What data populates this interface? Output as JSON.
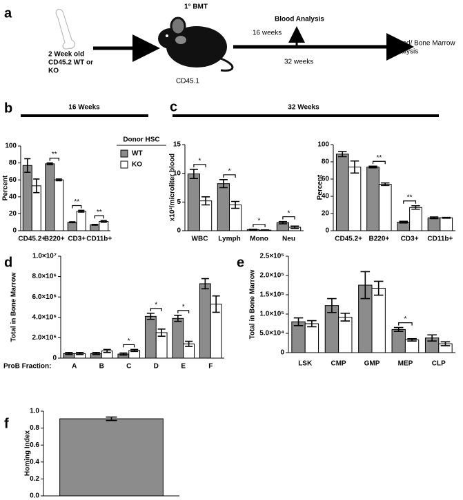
{
  "panel_labels": [
    "a",
    "b",
    "c",
    "d",
    "e",
    "f"
  ],
  "diagram": {
    "title": "1° BMT",
    "donor_lines": [
      "2 Week old",
      "CD45.2 WT or",
      "KO"
    ],
    "recipient": "CD45.1",
    "blood_analysis": "Blood Analysis",
    "time_1": "16 weeks",
    "time_2": "32 weeks",
    "endpoint_lines": [
      "Blood/ Bone Marrow",
      "Analysis"
    ]
  },
  "chart_data": [
    {
      "type": "bar",
      "title": "16 Weeks",
      "ylabel": "Percent",
      "categories": [
        "CD45.2+",
        "B220+",
        "CD3+",
        "CD11b+"
      ],
      "legend": true,
      "legend_title": "Donor HSC",
      "series": [
        {
          "name": "WT",
          "color": "#8c8c8c",
          "values": [
            77,
            79,
            10,
            7
          ],
          "errors": [
            8,
            1,
            0.5,
            0.5
          ]
        },
        {
          "name": "KO",
          "color": "#ffffff",
          "values": [
            53,
            60,
            23,
            11
          ],
          "errors": [
            8,
            1,
            1,
            1
          ]
        }
      ],
      "significance": [
        null,
        "**",
        "**",
        "**"
      ],
      "ylim": [
        0,
        100
      ],
      "yticks": [
        0,
        20,
        40,
        60,
        80,
        100
      ]
    },
    {
      "type": "bar",
      "title": "32 Weeks",
      "ylabel": "x10³/microliter blood",
      "categories": [
        "WBC",
        "Lymph",
        "Mono",
        "Neu"
      ],
      "series": [
        {
          "color": "#8c8c8c",
          "values": [
            9.9,
            8.2,
            0.2,
            1.4
          ],
          "errors": [
            0.8,
            0.7,
            0.05,
            0.2
          ]
        },
        {
          "color": "#ffffff",
          "values": [
            5.2,
            4.5,
            0.1,
            0.6
          ],
          "errors": [
            0.7,
            0.6,
            0.05,
            0.2
          ]
        }
      ],
      "significance": [
        "*",
        "*",
        "*",
        "*"
      ],
      "ylim": [
        0,
        15
      ],
      "yticks": [
        0,
        5,
        10,
        15
      ]
    },
    {
      "type": "bar",
      "ylabel": "Percent",
      "categories": [
        "CD45.2+",
        "B220+",
        "CD3+",
        "CD11b+"
      ],
      "series": [
        {
          "color": "#8c8c8c",
          "values": [
            89,
            74,
            10,
            15
          ],
          "errors": [
            3,
            1,
            1,
            1
          ]
        },
        {
          "color": "#ffffff",
          "values": [
            74,
            54,
            27,
            15
          ],
          "errors": [
            7,
            1.5,
            2,
            0.5
          ]
        }
      ],
      "significance": [
        null,
        "**",
        "**",
        null
      ],
      "ylim": [
        0,
        100
      ],
      "yticks": [
        0,
        20,
        40,
        60,
        80,
        100
      ]
    },
    {
      "type": "bar",
      "ylabel": "Total in Bone Marrow",
      "xlabel": "ProB Fraction:",
      "categories": [
        "A",
        "B",
        "C",
        "D",
        "E",
        "F"
      ],
      "series": [
        {
          "color": "#8c8c8c",
          "values": [
            450000,
            450000,
            400000,
            4100000,
            3900000,
            7300000
          ],
          "errors": [
            100000,
            100000,
            100000,
            300000,
            300000,
            500000
          ]
        },
        {
          "color": "#ffffff",
          "values": [
            450000,
            700000,
            750000,
            2500000,
            1400000,
            5300000
          ],
          "errors": [
            100000,
            150000,
            100000,
            350000,
            250000,
            800000
          ]
        }
      ],
      "significance": [
        null,
        null,
        "*",
        "*",
        "*",
        null
      ],
      "ylim": [
        0,
        10000000
      ],
      "yticks": [
        0,
        {
          "value": 2000000,
          "label": "2.0×10⁶"
        },
        {
          "value": 4000000,
          "label": "4.0×10⁶"
        },
        {
          "value": 6000000,
          "label": "6.0×10⁶"
        },
        {
          "value": 8000000,
          "label": "8.0×10⁶"
        },
        {
          "value": 10000000,
          "label": "1.0×10⁷"
        }
      ]
    },
    {
      "type": "bar",
      "ylabel": "Total in Bone Marrow",
      "categories": [
        "LSK",
        "CMP",
        "GMP",
        "MEP",
        "CLP"
      ],
      "series": [
        {
          "color": "#8c8c8c",
          "values": [
            80000,
            122000,
            175000,
            60000,
            38000
          ],
          "errors": [
            10000,
            18000,
            35000,
            5000,
            8000
          ]
        },
        {
          "color": "#ffffff",
          "values": [
            75000,
            92000,
            167000,
            33000,
            23000
          ],
          "errors": [
            8000,
            10000,
            18000,
            3000,
            5000
          ]
        }
      ],
      "significance": [
        null,
        null,
        null,
        "*",
        null
      ],
      "ylim": [
        0,
        250000
      ],
      "yticks": [
        0,
        {
          "value": 50000,
          "label": "5.0×10⁴"
        },
        {
          "value": 100000,
          "label": "1.0×10⁵"
        },
        {
          "value": 150000,
          "label": "1.5×10⁵"
        },
        {
          "value": 200000,
          "label": "2.0×10⁵"
        },
        {
          "value": 250000,
          "label": "2.5×10⁵"
        }
      ]
    },
    {
      "type": "bar",
      "ylabel": "Homing Index",
      "categories": [
        null
      ],
      "series": [
        {
          "color": "#8c8c8c",
          "values": [
            0.91
          ],
          "errors": [
            0.02
          ]
        }
      ],
      "ylim": [
        0,
        1
      ],
      "yticks": [
        {
          "value": 0,
          "label": "0.0"
        },
        0.2,
        0.4,
        0.6,
        0.8,
        {
          "value": 1,
          "label": "1.0"
        }
      ]
    }
  ]
}
